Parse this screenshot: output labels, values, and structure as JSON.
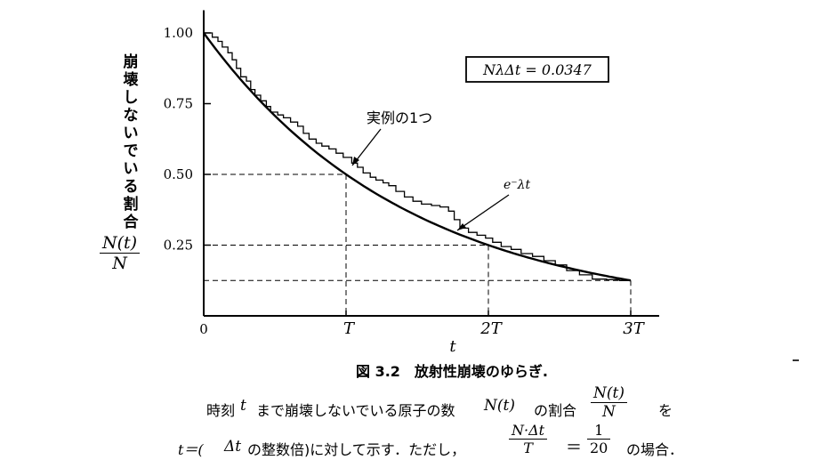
{
  "chart_data": {
    "type": "line",
    "x_axis_symbol": "t",
    "x_ticks": [
      {
        "label": "0",
        "value": 0
      },
      {
        "label": "T",
        "value": 1
      },
      {
        "label": "2T",
        "value": 2
      },
      {
        "label": "3T",
        "value": 3
      }
    ],
    "y_ticks": [
      {
        "label": "1.00",
        "value": 1.0
      },
      {
        "label": "0.75",
        "value": 0.75
      },
      {
        "label": "0.50",
        "value": 0.5
      },
      {
        "label": "0.25",
        "value": 0.25
      }
    ],
    "y_label_text": "崩壊しないでいる割合",
    "y_label_fraction": {
      "num": "N(t)",
      "den": "N"
    },
    "xlim": [
      0,
      3.2
    ],
    "ylim": [
      0,
      1.08
    ],
    "parameter_box": "NλΔt = 0.0347",
    "series": [
      {
        "name": "e⁻λt",
        "style": "smooth",
        "lambda": 0.6931,
        "x_range": [
          0,
          3.0
        ]
      },
      {
        "name": "実例の1つ",
        "style": "step",
        "points": [
          [
            0.0,
            1.0
          ],
          [
            0.06,
            0.985
          ],
          [
            0.1,
            0.97
          ],
          [
            0.13,
            0.95
          ],
          [
            0.17,
            0.93
          ],
          [
            0.2,
            0.905
          ],
          [
            0.23,
            0.875
          ],
          [
            0.26,
            0.845
          ],
          [
            0.3,
            0.83
          ],
          [
            0.33,
            0.8
          ],
          [
            0.36,
            0.78
          ],
          [
            0.4,
            0.76
          ],
          [
            0.44,
            0.74
          ],
          [
            0.47,
            0.72
          ],
          [
            0.52,
            0.71
          ],
          [
            0.56,
            0.7
          ],
          [
            0.61,
            0.685
          ],
          [
            0.66,
            0.67
          ],
          [
            0.7,
            0.645
          ],
          [
            0.74,
            0.625
          ],
          [
            0.79,
            0.61
          ],
          [
            0.83,
            0.6
          ],
          [
            0.88,
            0.59
          ],
          [
            0.93,
            0.575
          ],
          [
            0.98,
            0.56
          ],
          [
            1.04,
            0.54
          ],
          [
            1.08,
            0.525
          ],
          [
            1.12,
            0.505
          ],
          [
            1.17,
            0.49
          ],
          [
            1.21,
            0.48
          ],
          [
            1.26,
            0.47
          ],
          [
            1.3,
            0.46
          ],
          [
            1.35,
            0.44
          ],
          [
            1.41,
            0.42
          ],
          [
            1.47,
            0.405
          ],
          [
            1.53,
            0.395
          ],
          [
            1.6,
            0.39
          ],
          [
            1.66,
            0.385
          ],
          [
            1.72,
            0.37
          ],
          [
            1.76,
            0.34
          ],
          [
            1.8,
            0.31
          ],
          [
            1.86,
            0.295
          ],
          [
            1.92,
            0.285
          ],
          [
            1.98,
            0.275
          ],
          [
            2.03,
            0.26
          ],
          [
            2.09,
            0.245
          ],
          [
            2.16,
            0.235
          ],
          [
            2.23,
            0.22
          ],
          [
            2.31,
            0.21
          ],
          [
            2.39,
            0.195
          ],
          [
            2.47,
            0.18
          ],
          [
            2.55,
            0.16
          ],
          [
            2.64,
            0.145
          ],
          [
            2.73,
            0.13
          ],
          [
            2.83,
            0.128
          ],
          [
            2.92,
            0.125
          ],
          [
            3.0,
            0.125
          ]
        ]
      }
    ],
    "reference_lines": [
      {
        "x": 1,
        "y": 0.5
      },
      {
        "x": 2,
        "y": 0.25
      },
      {
        "x": 3,
        "y": 0.125
      }
    ],
    "annotations": [
      {
        "text": "実例の1つ",
        "target": "step-curve"
      },
      {
        "text": "e⁻λt",
        "target": "smooth-curve"
      }
    ]
  },
  "caption": {
    "title": "図 3.2　放射性崩壊のゆらぎ.",
    "line1_a": "時刻",
    "line1_t": "t",
    "line1_b": "まで崩壊しないでいる原子の数",
    "line1_nt": "N(t)",
    "line1_c": "の割合",
    "line1_frac_num": "N(t)",
    "line1_frac_den": "N",
    "line1_d": "を",
    "line2_a": "t＝(",
    "line2_dt": "Δt",
    "line2_b": "の整数倍)に対して示す．ただし，",
    "line2_frac_num": "N·Δt",
    "line2_frac_den": "T",
    "line2_eq": "＝",
    "line2_frac2_num": "1",
    "line2_frac2_den": "20",
    "line2_c": "の場合．"
  }
}
